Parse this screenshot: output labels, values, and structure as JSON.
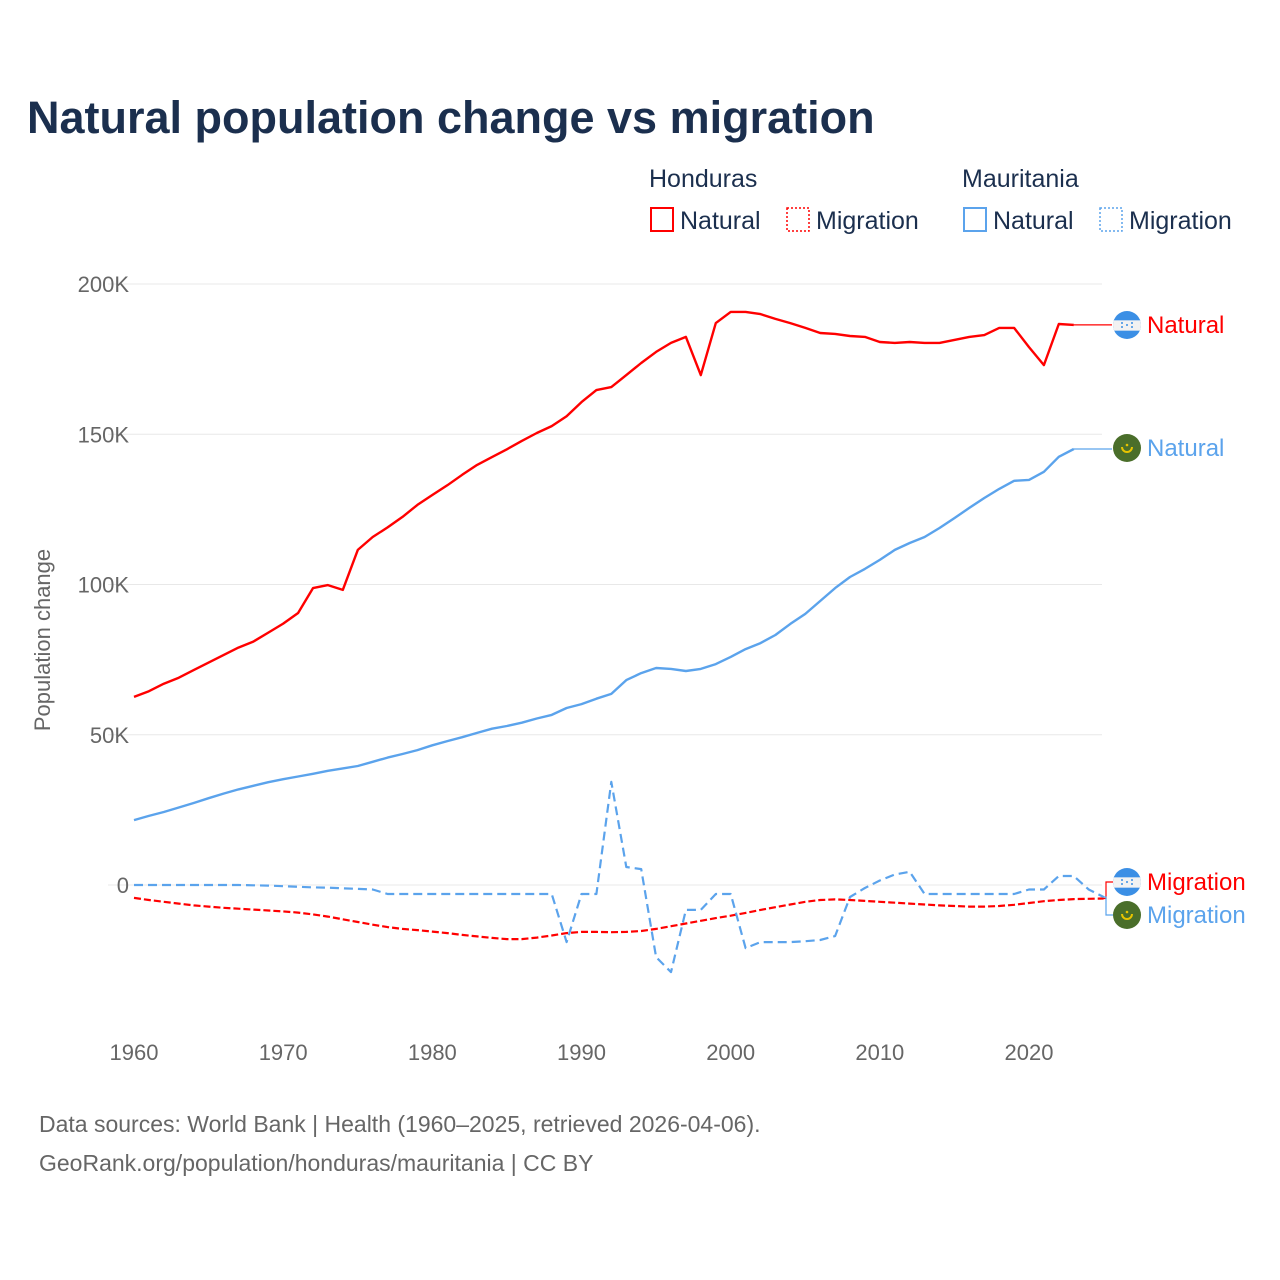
{
  "title": "Natural population change vs migration",
  "legend": {
    "groups": [
      {
        "country": "Honduras",
        "items": [
          "Natural",
          "Migration"
        ],
        "color": "#ff0000"
      },
      {
        "country": "Mauritania",
        "items": [
          "Natural",
          "Migration"
        ],
        "color": "#5ba3ec"
      }
    ]
  },
  "footer": {
    "line1": "Data sources: World Bank | Health (1960–2025, retrieved 2026-04-06).",
    "line2": "GeoRank.org/population/honduras/mauritania | CC BY"
  },
  "chart_data": {
    "type": "line",
    "title": "Natural population change vs migration",
    "xlabel": "",
    "ylabel": "Population change",
    "xlim": [
      1960,
      2025
    ],
    "ylim": [
      -40000,
      200000
    ],
    "x_ticks": [
      1960,
      1970,
      1980,
      1990,
      2000,
      2010,
      2020
    ],
    "x_tick_labels": [
      "1960",
      "1970",
      "1980",
      "1990",
      "2000",
      "2010",
      "2020"
    ],
    "y_ticks": [
      0,
      50000,
      100000,
      150000,
      200000
    ],
    "y_tick_labels": [
      "0",
      "50K",
      "100K",
      "150K",
      "200K"
    ],
    "grid": true,
    "legend_position": "top-right",
    "series": [
      {
        "name": "Honduras Natural",
        "end_label": "Natural",
        "country": "Honduras",
        "color": "#ff0000",
        "dash": false,
        "start_year": 1960,
        "values": [
          62600,
          64500,
          67000,
          69000,
          71500,
          74000,
          76500,
          79000,
          81000,
          84000,
          87000,
          90500,
          98800,
          99800,
          98200,
          111500,
          115800,
          119000,
          122500,
          126500,
          129800,
          133000,
          136500,
          139800,
          142400,
          145000,
          147800,
          150400,
          152700,
          156000,
          160700,
          164700,
          165700,
          169700,
          173700,
          177400,
          180400,
          182400,
          169700,
          187000,
          190700,
          190700,
          190000,
          188400,
          187000,
          185400,
          183700,
          183400,
          182700,
          182400,
          180700,
          180400,
          180700,
          180400,
          180400,
          181400,
          182400,
          183000,
          185400,
          185400,
          179000,
          173000,
          186700,
          186400
        ]
      },
      {
        "name": "Mauritania Natural",
        "end_label": "Natural",
        "country": "Mauritania",
        "color": "#5ba3ec",
        "dash": false,
        "start_year": 1960,
        "values": [
          21600,
          23000,
          24300,
          25800,
          27300,
          28900,
          30400,
          31800,
          33000,
          34200,
          35200,
          36100,
          37000,
          38000,
          38800,
          39600,
          41000,
          42400,
          43600,
          44900,
          46500,
          47900,
          49200,
          50600,
          52000,
          52900,
          54000,
          55400,
          56600,
          58900,
          60200,
          62000,
          63600,
          68200,
          70500,
          72200,
          71900,
          71200,
          71900,
          73500,
          75900,
          78500,
          80500,
          83200,
          86900,
          90200,
          94500,
          98800,
          102500,
          105200,
          108200,
          111500,
          113800,
          115800,
          118800,
          122100,
          125500,
          128800,
          131800,
          134500,
          134800,
          137500,
          142500,
          145100
        ]
      },
      {
        "name": "Honduras Migration",
        "end_label": "Migration",
        "country": "Honduras",
        "color": "#ff0000",
        "dash": true,
        "start_year": 1960,
        "values": [
          -4300,
          -5000,
          -5600,
          -6200,
          -6800,
          -7200,
          -7600,
          -7900,
          -8200,
          -8500,
          -8800,
          -9200,
          -9800,
          -10500,
          -11400,
          -12300,
          -13200,
          -14000,
          -14600,
          -15000,
          -15500,
          -16000,
          -16600,
          -17100,
          -17600,
          -18000,
          -18000,
          -17500,
          -16800,
          -16000,
          -15600,
          -15600,
          -15700,
          -15600,
          -15300,
          -14600,
          -13700,
          -12800,
          -11900,
          -11000,
          -10200,
          -9300,
          -8300,
          -7400,
          -6500,
          -5600,
          -5000,
          -4800,
          -5000,
          -5300,
          -5600,
          -5900,
          -6200,
          -6500,
          -6800,
          -7000,
          -7200,
          -7200,
          -7000,
          -6600,
          -6000,
          -5400,
          -5000,
          -4700,
          -4600,
          -4500
        ]
      },
      {
        "name": "Mauritania Migration",
        "end_label": "Migration",
        "country": "Mauritania",
        "color": "#5ba3ec",
        "dash": true,
        "start_year": 1960,
        "values": [
          0,
          0,
          0,
          0,
          0,
          0,
          0,
          0,
          -100,
          -200,
          -400,
          -600,
          -800,
          -900,
          -1100,
          -1300,
          -1500,
          -3000,
          -3000,
          -3000,
          -3000,
          -3000,
          -3000,
          -3000,
          -3000,
          -3000,
          -3000,
          -3000,
          -3000,
          -19000,
          -3000,
          -3000,
          34300,
          6000,
          5300,
          -24000,
          -29000,
          -8300,
          -8300,
          -3000,
          -3000,
          -21000,
          -19000,
          -19000,
          -19000,
          -18700,
          -18300,
          -17000,
          -4000,
          -1000,
          1500,
          3500,
          4400,
          -3000,
          -3000,
          -3000,
          -3000,
          -3000,
          -3000,
          -3000,
          -1500,
          -1500,
          3000,
          3000,
          -1500,
          -4000
        ]
      }
    ]
  }
}
